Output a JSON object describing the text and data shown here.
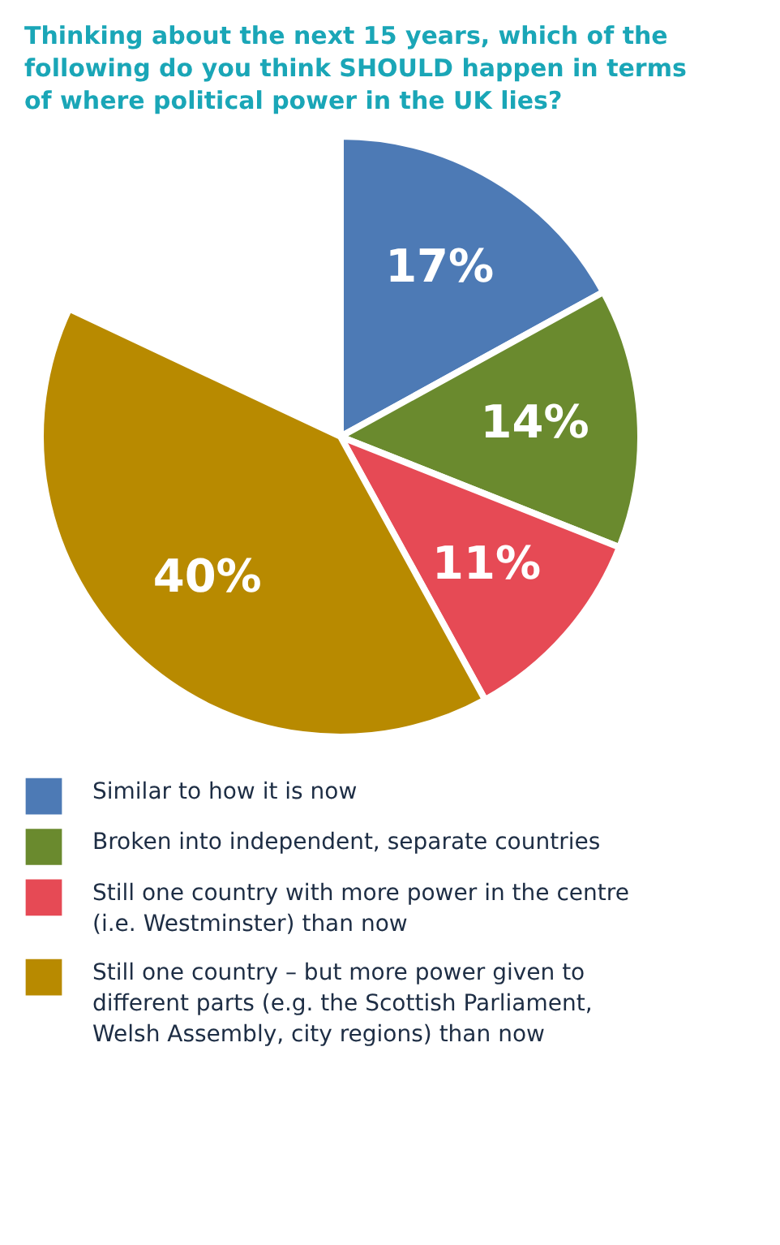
{
  "chart_data": {
    "type": "pie",
    "title": "Thinking about the next 15 years, which of the following do you think SHOULD happen in terms of where political power in the UK lies?",
    "categories": [
      "Similar to how it is now",
      "Broken into independent, separate countries",
      "Still one country with more power in the centre (i.e. Westminster) than now",
      "Still one country – but more power given to different parts (e.g. the Scottish Parliament, Welsh Assembly, city regions) than now"
    ],
    "values": [
      17,
      14,
      11,
      40
    ],
    "colors": [
      "#4d7ab5",
      "#6a8a2e",
      "#e64a55",
      "#b88a00"
    ],
    "value_labels": [
      "17%",
      "14%",
      "11%",
      "40%"
    ],
    "legend": "bottom"
  }
}
